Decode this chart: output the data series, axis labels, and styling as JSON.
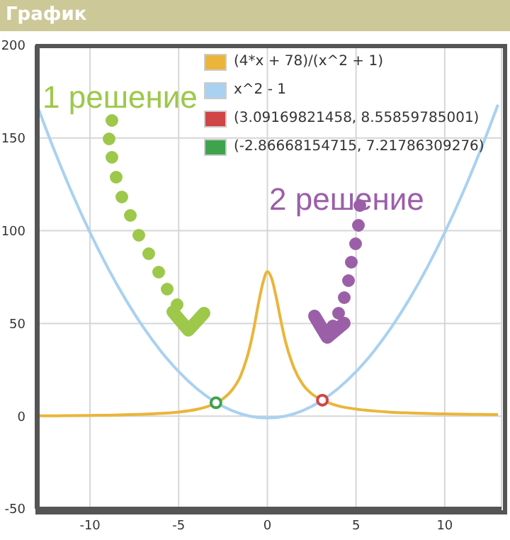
{
  "chart_data": {
    "type": "line",
    "title": "График",
    "xlim": [
      -13,
      13.2
    ],
    "xticks": [
      -10,
      -5,
      0,
      5,
      10
    ],
    "ylim": [
      -50,
      200
    ],
    "yticks": [
      -50,
      0,
      50,
      100,
      150,
      200
    ],
    "grid": true,
    "legend": "top right",
    "annotations": [
      "1 решение",
      "2 решение"
    ],
    "series": [
      {
        "name": "(4*x + 78)/(x^2 + 1)",
        "color": "#eab53a",
        "marker": "none",
        "x": [
          -13,
          -12,
          -11,
          -10,
          -9,
          -8,
          -7,
          -6,
          -5,
          -4,
          -3.5,
          -3,
          -2.5,
          -2,
          -1.5,
          -1,
          -0.75,
          -0.5,
          -0.25,
          0,
          0.25,
          0.5,
          0.75,
          1,
          1.5,
          2,
          2.5,
          3,
          3.5,
          4,
          5,
          6,
          7,
          8,
          9,
          10,
          11,
          12,
          13
        ],
        "values": [
          0.2,
          0.2,
          0.3,
          0.4,
          0.5,
          0.7,
          1,
          1.5,
          2.2,
          3.6,
          4.8,
          6.6,
          9.4,
          14,
          22,
          37,
          48,
          61,
          72,
          78,
          74,
          64,
          52,
          41,
          26,
          17,
          12,
          9,
          7,
          5.5,
          3.8,
          2.8,
          2.1,
          1.7,
          1.4,
          1.2,
          1,
          0.9,
          0.8
        ]
      },
      {
        "name": "x^2 - 1",
        "color": "#a9d1f1",
        "marker": "none",
        "x": [
          -13,
          -12,
          -11,
          -10,
          -9,
          -8,
          -7,
          -6,
          -5,
          -4,
          -3,
          -2,
          -1,
          0,
          1,
          2,
          3,
          4,
          5,
          6,
          7,
          8,
          9,
          10,
          11,
          12,
          13
        ],
        "values": [
          168,
          143,
          120,
          99,
          80,
          63,
          48,
          35,
          24,
          15,
          8,
          3,
          0,
          -1,
          0,
          3,
          8,
          15,
          24,
          35,
          48,
          63,
          80,
          99,
          120,
          143,
          168
        ]
      },
      {
        "name": "(3.09169821458, 8.55859785001)",
        "type": "scatter",
        "color": "#d04545",
        "marker": "circle",
        "x": [
          3.1
        ],
        "values": [
          8.6
        ]
      },
      {
        "name": "(-2.86668154715, 7.21786309276)",
        "type": "scatter",
        "color": "#3fa34d",
        "marker": "circle",
        "x": [
          -2.9
        ],
        "values": [
          7.2
        ]
      }
    ]
  }
}
